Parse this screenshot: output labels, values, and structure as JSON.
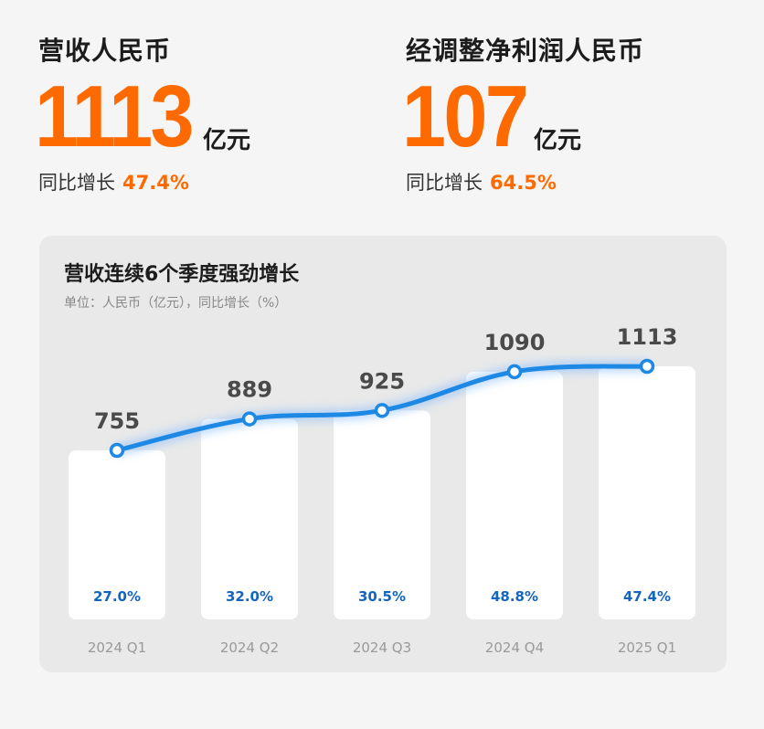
{
  "revenue": {
    "title": "营收人民币",
    "value": "1113",
    "unit": "亿元",
    "growth_label": "同比增长",
    "growth_value": "47.4%"
  },
  "adjusted_net_profit": {
    "title": "经调整净利润人民币",
    "value": "107",
    "unit": "亿元",
    "growth_label": "同比增长",
    "growth_value": "64.5%"
  },
  "colors": {
    "accent_orange": "#ff6a00",
    "line_blue": "#1e88e5",
    "percent_blue": "#1565c0"
  },
  "chart_data": {
    "type": "bar",
    "title": "营收连续6个季度强劲增长",
    "subtitle": "单位：人民币（亿元），同比增长（%）",
    "categories": [
      "2024 Q1",
      "2024 Q2",
      "2024 Q3",
      "2024 Q4",
      "2025 Q1"
    ],
    "series": [
      {
        "values": [
          755,
          889,
          925,
          1090,
          1113
        ]
      },
      {
        "values": [
          27.0,
          32.0,
          30.5,
          48.8,
          47.4
        ]
      }
    ],
    "value_labels": [
      "755",
      "889",
      "925",
      "1090",
      "1113"
    ],
    "growth_labels": [
      "27.0%",
      "32.0%",
      "30.5%",
      "48.8%",
      "47.4%"
    ],
    "overlay": "line-through-bar-tops",
    "grid": false,
    "legend": "none"
  }
}
